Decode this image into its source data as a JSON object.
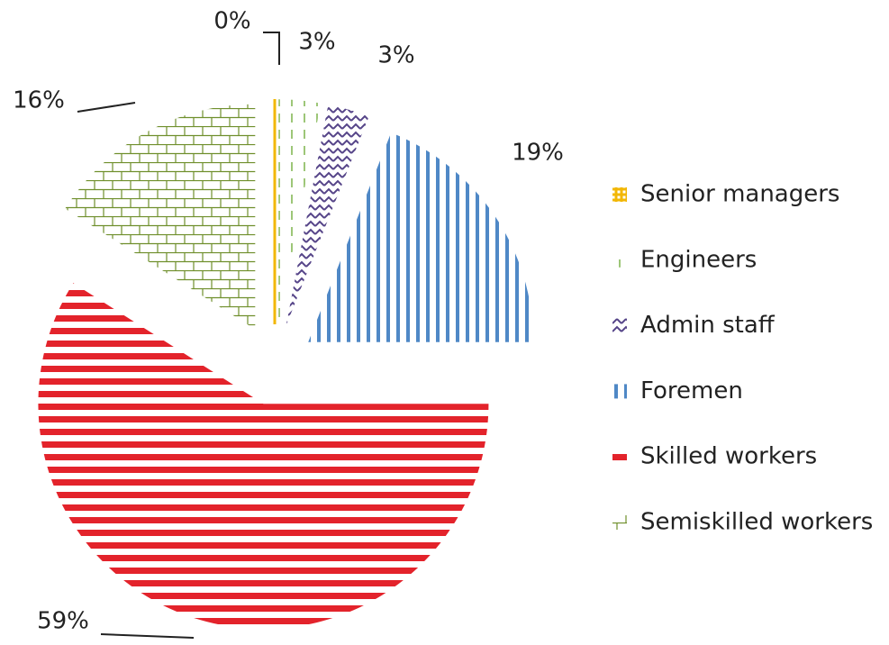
{
  "chart_data": {
    "type": "pie",
    "categories": [
      "Senior managers",
      "Engineers",
      "Admin staff",
      "Foremen",
      "Skilled workers",
      "Semiskilled workers"
    ],
    "values": [
      0,
      3,
      3,
      19,
      59,
      16
    ],
    "value_labels": [
      "0%",
      "3%",
      "3%",
      "19%",
      "59%",
      "16%"
    ],
    "colors": [
      "#f2b705",
      "#7cb24a",
      "#554488",
      "#4f88c6",
      "#e3232b",
      "#6f8f2c"
    ],
    "legend": "right"
  }
}
